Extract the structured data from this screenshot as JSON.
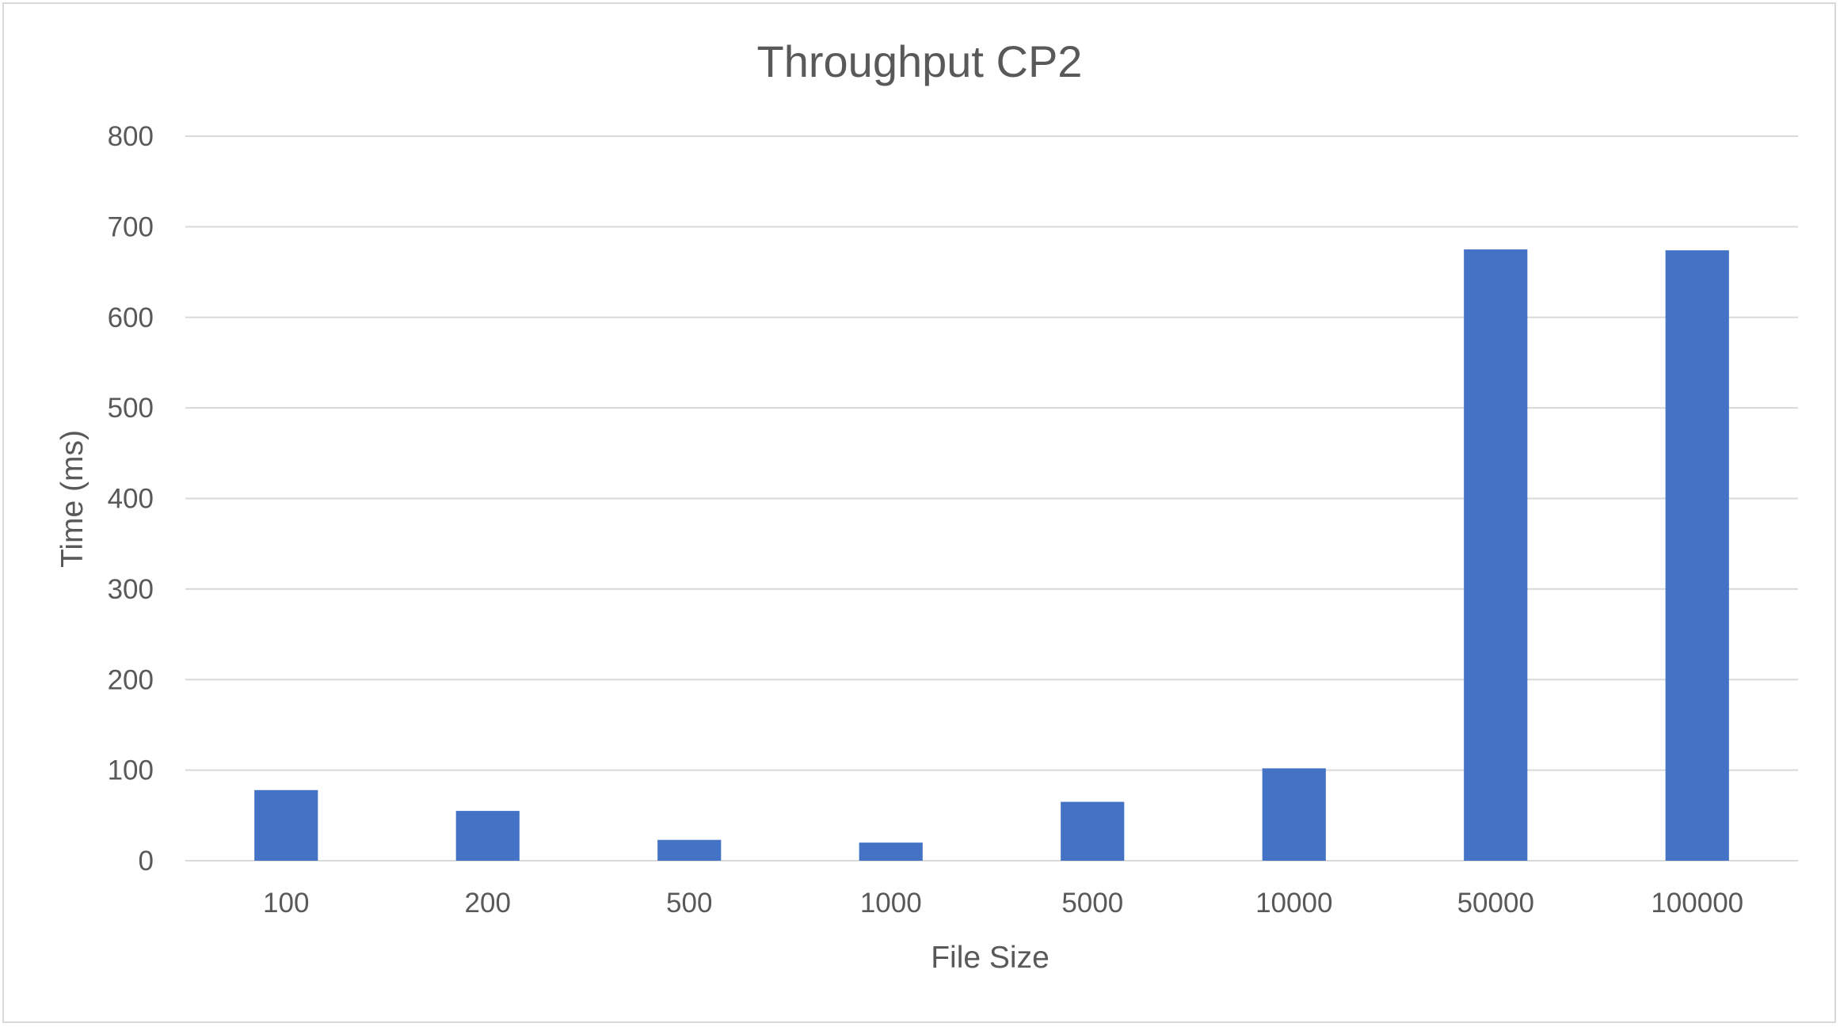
{
  "chart_data": {
    "type": "bar",
    "title": "Throughput CP2",
    "xlabel": "File Size",
    "ylabel": "Time (ms)",
    "categories": [
      "100",
      "200",
      "500",
      "1000",
      "5000",
      "10000",
      "50000",
      "100000"
    ],
    "series": [
      {
        "name": "Time (ms)",
        "values": [
          78,
          55,
          23,
          20,
          65,
          102,
          675,
          674
        ]
      }
    ],
    "ylim": [
      0,
      800
    ],
    "yticks": [
      0,
      100,
      200,
      300,
      400,
      500,
      600,
      700,
      800
    ],
    "grid": true,
    "legend": "none",
    "colors": {
      "bar": "#4472c4",
      "grid": "#d9d9d9",
      "text": "#595959"
    }
  }
}
